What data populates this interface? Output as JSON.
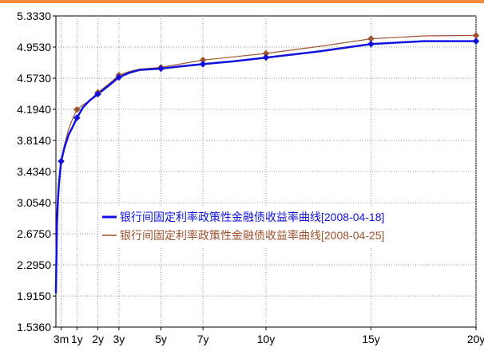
{
  "chart_data": {
    "type": "line",
    "title": "",
    "xlabel": "",
    "ylabel": "",
    "ylim": [
      1.536,
      5.333
    ],
    "xlim": [
      0,
      20
    ],
    "grid": true,
    "legend_position": "middle-right",
    "y_ticks": [
      5.333,
      4.953,
      4.573,
      4.194,
      3.814,
      3.434,
      3.054,
      2.675,
      2.295,
      1.915,
      1.536
    ],
    "y_tick_labels": [
      "5.3330",
      "4.9530",
      "4.5730",
      "4.1940",
      "3.8140",
      "3.4340",
      "3.0540",
      "2.6750",
      "2.2950",
      "1.9150",
      "1.5360"
    ],
    "x_ticks": [
      {
        "x": 0.25,
        "label": "3m"
      },
      {
        "x": 1,
        "label": "1y"
      },
      {
        "x": 2,
        "label": "2y"
      },
      {
        "x": 3,
        "label": "3y"
      },
      {
        "x": 5,
        "label": "5y"
      },
      {
        "x": 7,
        "label": "7y"
      },
      {
        "x": 10,
        "label": "10y"
      },
      {
        "x": 15,
        "label": "15y"
      },
      {
        "x": 20,
        "label": "20y"
      }
    ],
    "series": [
      {
        "name": "银行间固定利率政策性金融债收益率曲线[2008-04-18]",
        "color": "#1010e0",
        "line_width": 2.5,
        "curve": [
          [
            0,
            1.95
          ],
          [
            0.05,
            2.8
          ],
          [
            0.1,
            3.1
          ],
          [
            0.15,
            3.3
          ],
          [
            0.25,
            3.56
          ],
          [
            0.4,
            3.72
          ],
          [
            0.6,
            3.88
          ],
          [
            0.8,
            3.98
          ],
          [
            1.0,
            4.09
          ],
          [
            1.3,
            4.22
          ],
          [
            1.6,
            4.3
          ],
          [
            2.0,
            4.38
          ],
          [
            2.5,
            4.48
          ],
          [
            3.0,
            4.585
          ],
          [
            3.5,
            4.64
          ],
          [
            4.0,
            4.675
          ],
          [
            5.0,
            4.69
          ],
          [
            6.0,
            4.72
          ],
          [
            7.0,
            4.745
          ],
          [
            8.5,
            4.78
          ],
          [
            10.0,
            4.825
          ],
          [
            12.5,
            4.9
          ],
          [
            15.0,
            4.99
          ],
          [
            17.5,
            5.025
          ],
          [
            20.0,
            5.025
          ]
        ],
        "markers": [
          [
            0.25,
            3.56
          ],
          [
            1,
            4.09
          ],
          [
            2,
            4.38
          ],
          [
            3,
            4.585
          ],
          [
            5,
            4.69
          ],
          [
            7,
            4.745
          ],
          [
            10,
            4.825
          ],
          [
            15,
            4.99
          ],
          [
            20,
            5.025
          ]
        ]
      },
      {
        "name": "银行间固定利率政策性金融债收益率曲线[2008-04-25]",
        "color": "#a0522d",
        "line_width": 1.2,
        "curve": [
          [
            0.25,
            3.56
          ],
          [
            0.4,
            3.75
          ],
          [
            0.6,
            3.95
          ],
          [
            0.8,
            4.08
          ],
          [
            1.0,
            4.19
          ],
          [
            1.3,
            4.25
          ],
          [
            1.6,
            4.3
          ],
          [
            2.0,
            4.4
          ],
          [
            2.5,
            4.5
          ],
          [
            3.0,
            4.61
          ],
          [
            3.5,
            4.655
          ],
          [
            4.0,
            4.685
          ],
          [
            5.0,
            4.705
          ],
          [
            6.0,
            4.75
          ],
          [
            7.0,
            4.795
          ],
          [
            8.5,
            4.835
          ],
          [
            10.0,
            4.875
          ],
          [
            12.5,
            4.96
          ],
          [
            15.0,
            5.055
          ],
          [
            17.5,
            5.09
          ],
          [
            20.0,
            5.095
          ]
        ],
        "markers": [
          [
            1,
            4.19
          ],
          [
            2,
            4.4
          ],
          [
            3,
            4.61
          ],
          [
            5,
            4.705
          ],
          [
            7,
            4.795
          ],
          [
            10,
            4.875
          ],
          [
            15,
            5.055
          ],
          [
            20,
            5.095
          ]
        ]
      }
    ]
  }
}
